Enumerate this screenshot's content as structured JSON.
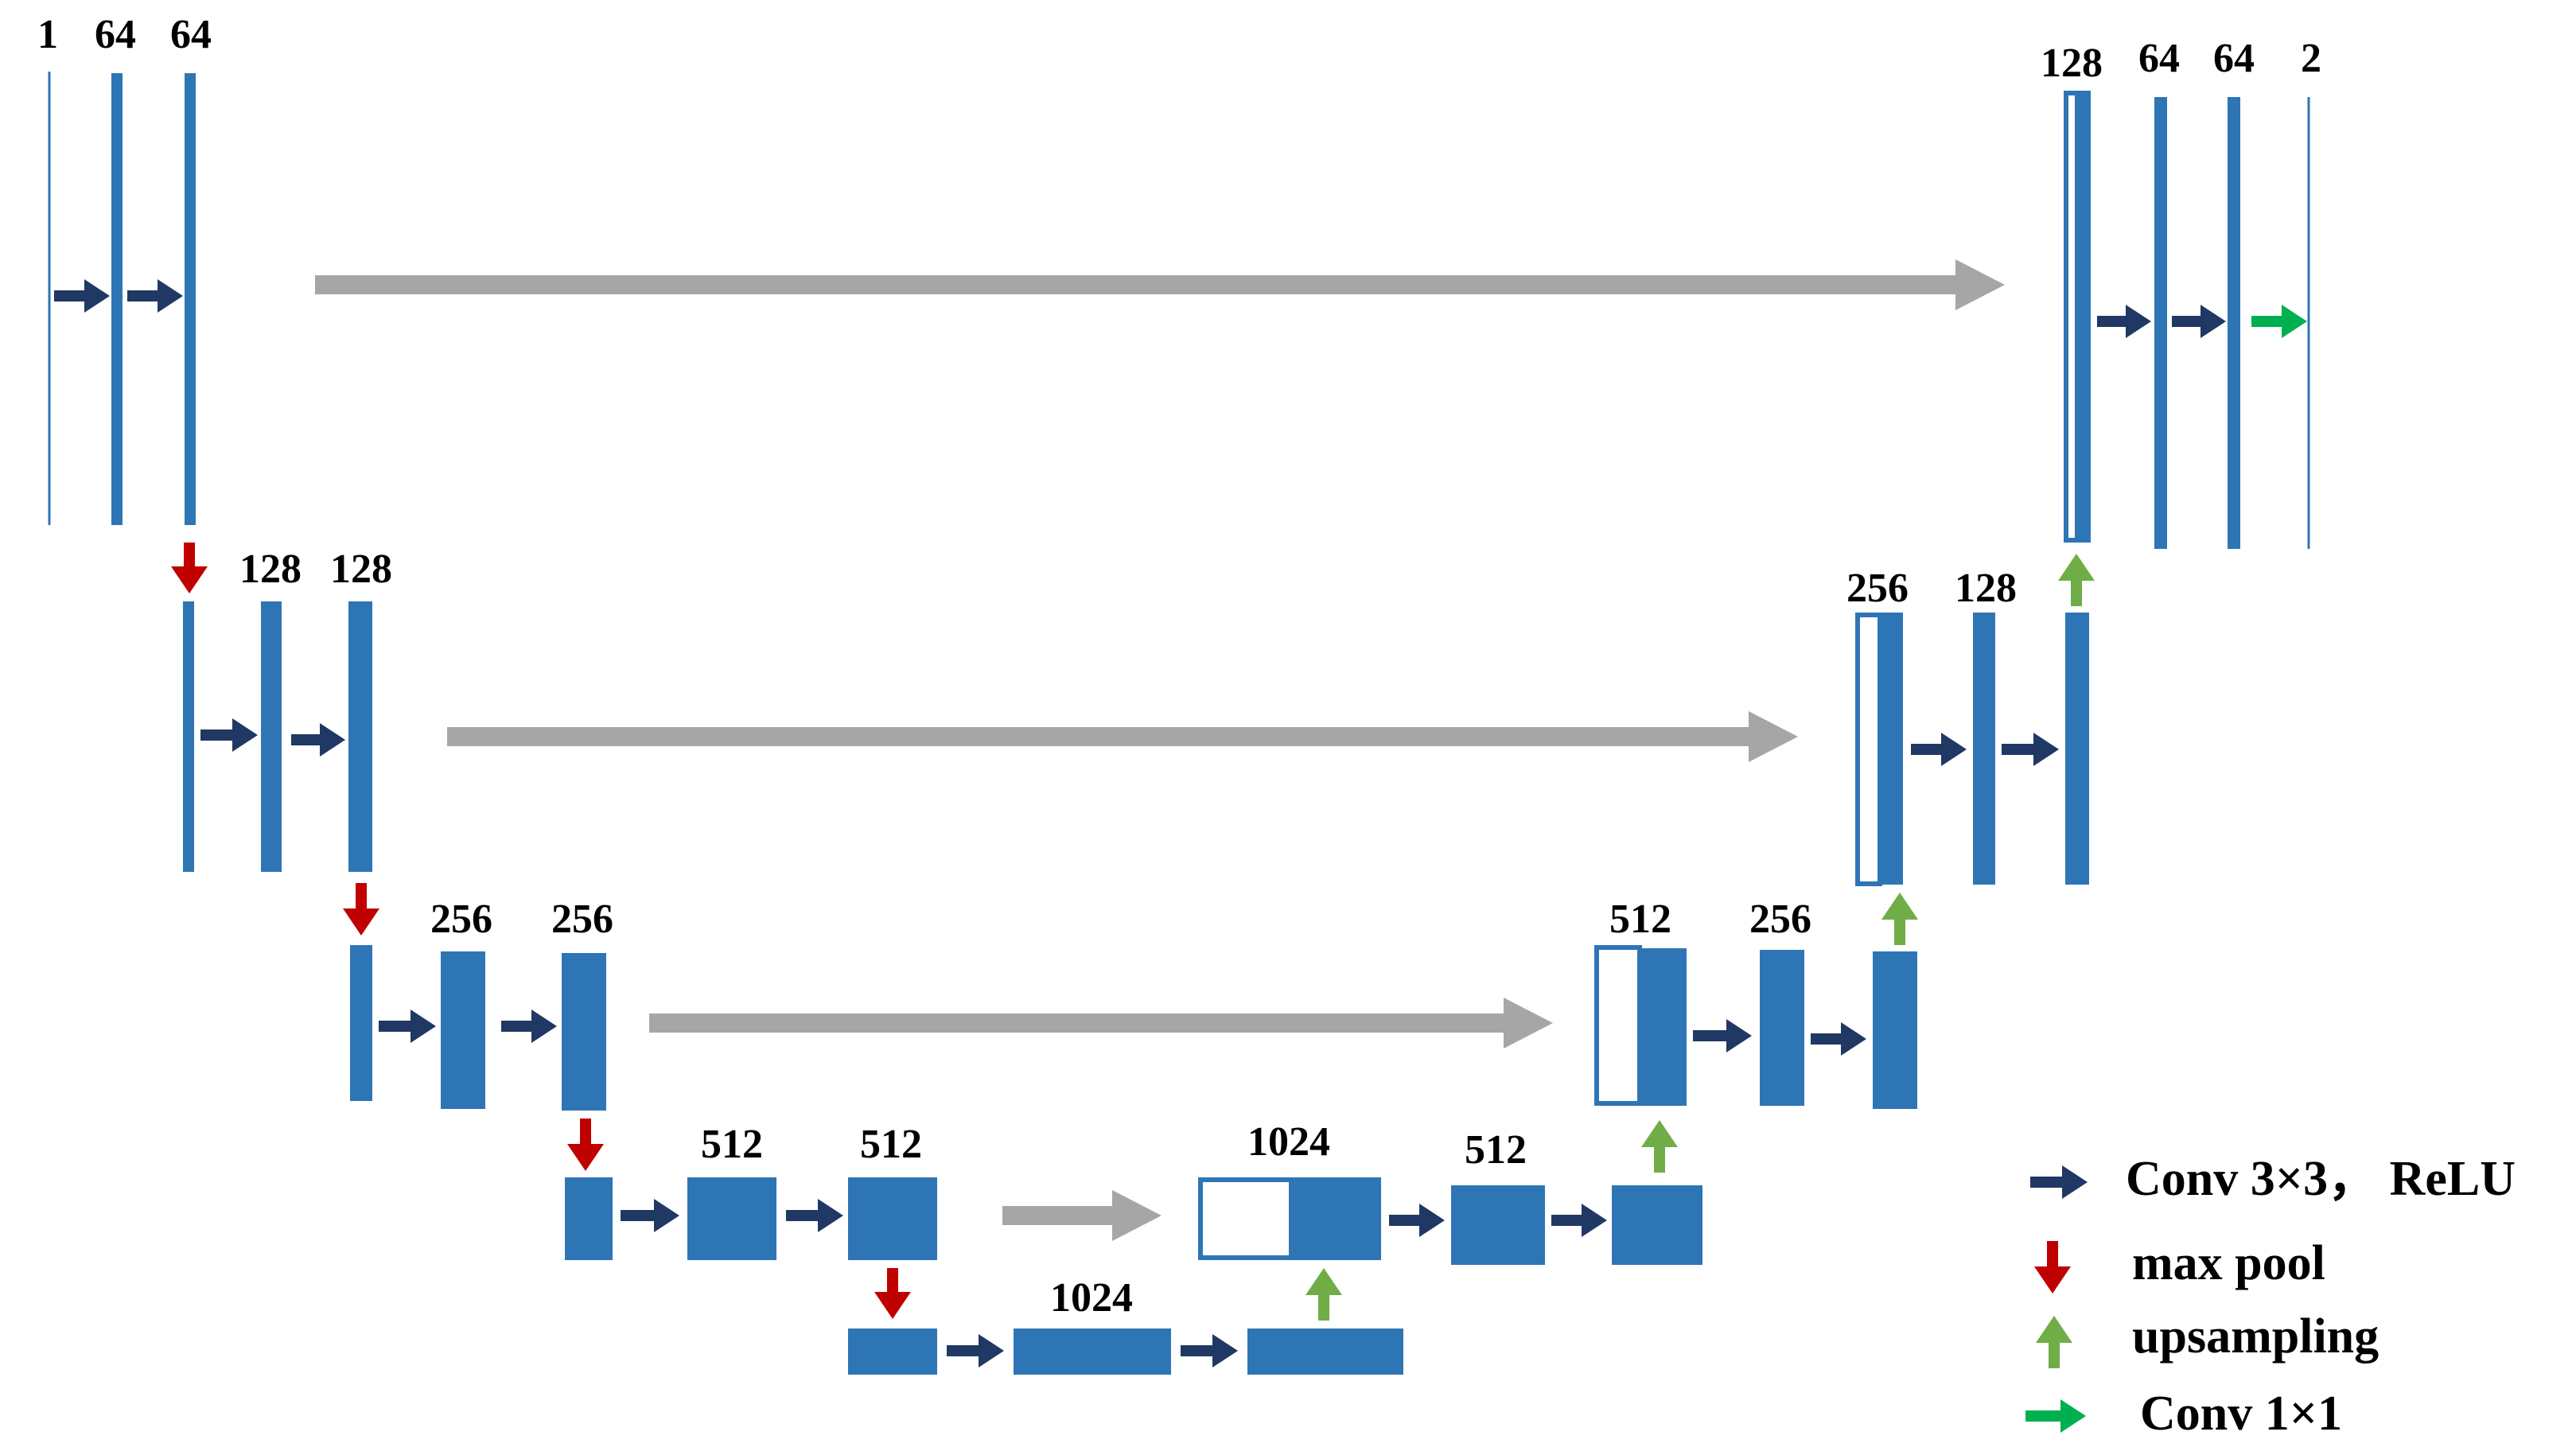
{
  "colors": {
    "block": "#2E75B6",
    "conv": "#203864",
    "maxpool": "#C00000",
    "upsampling": "#70AD47",
    "conv1x1": "#00B050",
    "skip": "#A6A6A6"
  },
  "channel_labels": {
    "enc1": [
      "1",
      "64",
      "64"
    ],
    "enc2": [
      "128",
      "128"
    ],
    "enc3": [
      "256",
      "256"
    ],
    "enc4": [
      "512",
      "512"
    ],
    "bottleneck": [
      "1024"
    ],
    "dec4": [
      "1024",
      "512"
    ],
    "dec3": [
      "512",
      "256"
    ],
    "dec2": [
      "256",
      "128"
    ],
    "dec1": [
      "128",
      "64",
      "64",
      "2"
    ]
  },
  "legend": [
    {
      "icon": "conv-arrow-icon",
      "color": "#203864",
      "label": "Conv 3×3，  ReLU"
    },
    {
      "icon": "maxpool-arrow-icon",
      "color": "#C00000",
      "label": "max pool"
    },
    {
      "icon": "upsampling-arrow-icon",
      "color": "#70AD47",
      "label": "upsampling"
    },
    {
      "icon": "conv1x1-arrow-icon",
      "color": "#00B050",
      "label": "Conv 1×1"
    }
  ]
}
